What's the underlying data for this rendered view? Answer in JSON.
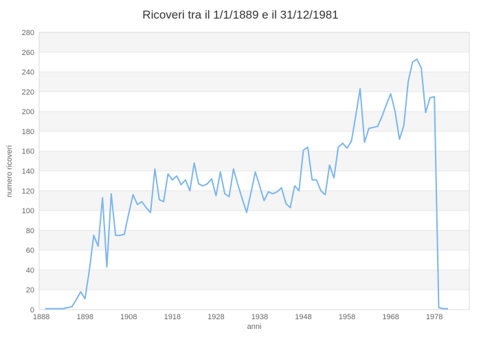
{
  "chart_data": {
    "type": "line",
    "title": "Ricoveri tra il 1/1/1889 e il 31/12/1981",
    "xlabel": "anni",
    "ylabel": "numero ricoveri",
    "legend": "none",
    "grid": "horizontal-bands",
    "ylim": [
      0,
      280
    ],
    "xlim": [
      1887.5,
      1986
    ],
    "yticks": [
      0,
      20,
      40,
      60,
      80,
      100,
      120,
      140,
      160,
      180,
      200,
      220,
      240,
      260,
      280
    ],
    "xticks": [
      1888,
      1898,
      1908,
      1918,
      1928,
      1938,
      1948,
      1958,
      1968,
      1978
    ],
    "x": [
      1889,
      1890,
      1891,
      1892,
      1893,
      1894,
      1895,
      1896,
      1897,
      1898,
      1899,
      1900,
      1901,
      1902,
      1903,
      1904,
      1905,
      1906,
      1907,
      1908,
      1909,
      1910,
      1911,
      1912,
      1913,
      1914,
      1915,
      1916,
      1917,
      1918,
      1919,
      1920,
      1921,
      1922,
      1923,
      1924,
      1925,
      1926,
      1927,
      1928,
      1929,
      1930,
      1931,
      1932,
      1933,
      1934,
      1935,
      1936,
      1937,
      1938,
      1939,
      1940,
      1941,
      1942,
      1943,
      1944,
      1945,
      1946,
      1947,
      1948,
      1949,
      1950,
      1951,
      1952,
      1953,
      1954,
      1955,
      1956,
      1957,
      1958,
      1959,
      1960,
      1961,
      1962,
      1963,
      1964,
      1965,
      1966,
      1967,
      1968,
      1969,
      1970,
      1971,
      1972,
      1973,
      1974,
      1975,
      1976,
      1977,
      1978,
      1979,
      1980,
      1981
    ],
    "values": [
      1,
      1,
      1,
      1,
      1,
      2,
      3,
      10,
      18,
      11,
      40,
      75,
      64,
      113,
      43,
      117,
      75,
      75,
      76,
      97,
      116,
      106,
      109,
      103,
      98,
      142,
      111,
      109,
      137,
      131,
      135,
      126,
      131,
      120,
      148,
      127,
      125,
      127,
      132,
      115,
      139,
      117,
      114,
      142,
      126,
      112,
      98,
      118,
      139,
      125,
      110,
      119,
      117,
      119,
      123,
      107,
      103,
      125,
      120,
      161,
      164,
      131,
      131,
      120,
      116,
      146,
      133,
      164,
      168,
      163,
      170,
      196,
      223,
      169,
      183,
      184,
      185,
      195,
      207,
      218,
      200,
      172,
      186,
      230,
      250,
      253,
      244,
      199,
      214,
      215,
      2,
      1,
      1
    ]
  },
  "colors": {
    "series": "#7cb5ec",
    "band": "#f5f5f5",
    "gridline": "#e7e7e7",
    "plot_border": "#d9d9d9",
    "title_text": "#333333",
    "axis_text": "#666666"
  }
}
